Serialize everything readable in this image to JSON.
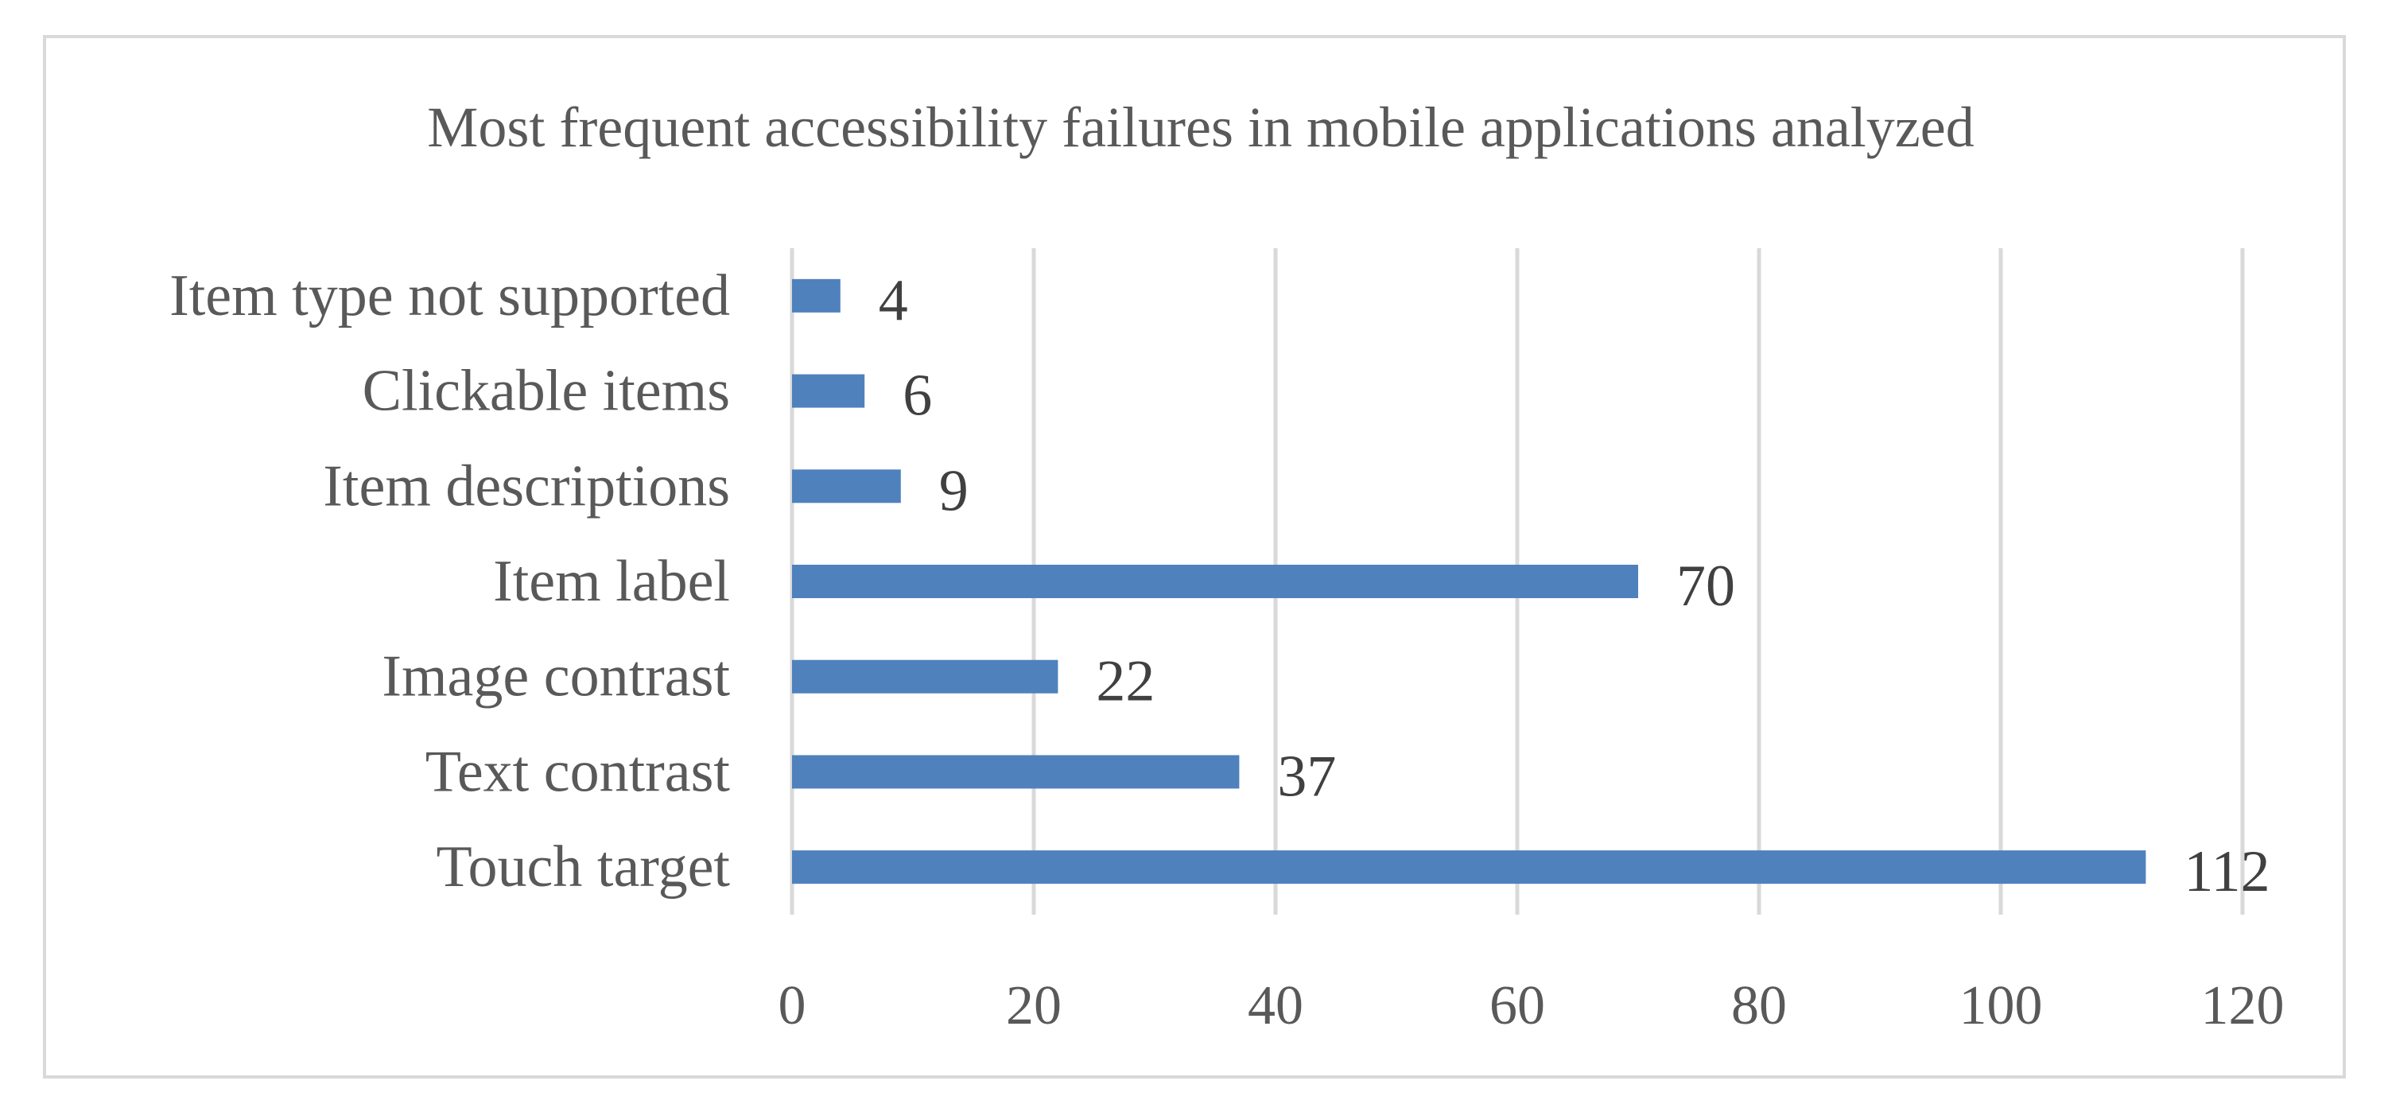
{
  "chart_data": {
    "type": "bar",
    "orientation": "horizontal",
    "title": "Most frequent accessibility failures in mobile applications analyzed",
    "xlabel": "",
    "ylabel": "",
    "categories": [
      "Item type not supported",
      "Clickable items",
      "Item descriptions",
      "Item label",
      "Image contrast",
      "Text contrast",
      "Touch target"
    ],
    "values": [
      4,
      6,
      9,
      70,
      22,
      37,
      112
    ],
    "data_labels": [
      "4",
      "6",
      "9",
      "70",
      "22",
      "37",
      "112"
    ],
    "xlim": [
      0,
      120
    ],
    "x_ticks": [
      "0",
      "20",
      "40",
      "60",
      "80",
      "100",
      "120"
    ],
    "grid": "vertical",
    "legend": "none",
    "bar_color": "#4f81bd"
  }
}
